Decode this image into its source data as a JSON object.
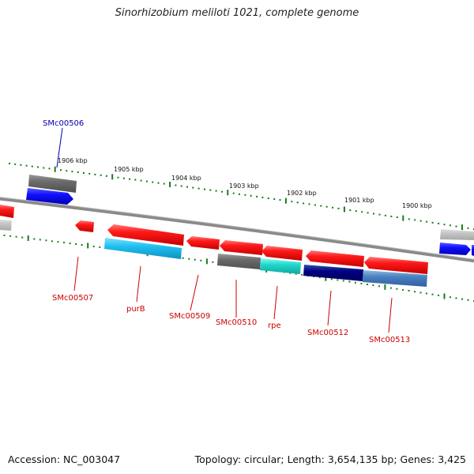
{
  "title": "Sinorhizobium meliloti 1021, complete genome",
  "footer": {
    "accession": "Accession: NC_003047",
    "summary": "Topology: circular; Length: 3,654,135 bp; Genes: 3,425"
  },
  "colors": {
    "backbone": "#8a8a8a",
    "scale_ticks": "#1a7a1a",
    "gene_forward": "#0000ee",
    "gene_reverse": "#e00000",
    "label_forward": "#0000aa",
    "label_reverse": "#cc0000"
  },
  "scale_labels": [
    "1906 kbp",
    "1905 kbp",
    "1904 kbp",
    "1903 kbp",
    "1902 kbp",
    "1901 kbp",
    "1900 kbp"
  ],
  "genes": [
    {
      "name": "SMc00506",
      "strand": "forward"
    },
    {
      "name": "SMc00507",
      "strand": "reverse"
    },
    {
      "name": "purB",
      "strand": "reverse"
    },
    {
      "name": "SMc00509",
      "strand": "reverse"
    },
    {
      "name": "SMc00510",
      "strand": "reverse"
    },
    {
      "name": "rpe",
      "strand": "reverse"
    },
    {
      "name": "SMc00512",
      "strand": "reverse"
    },
    {
      "name": "SMc00513",
      "strand": "reverse"
    }
  ]
}
